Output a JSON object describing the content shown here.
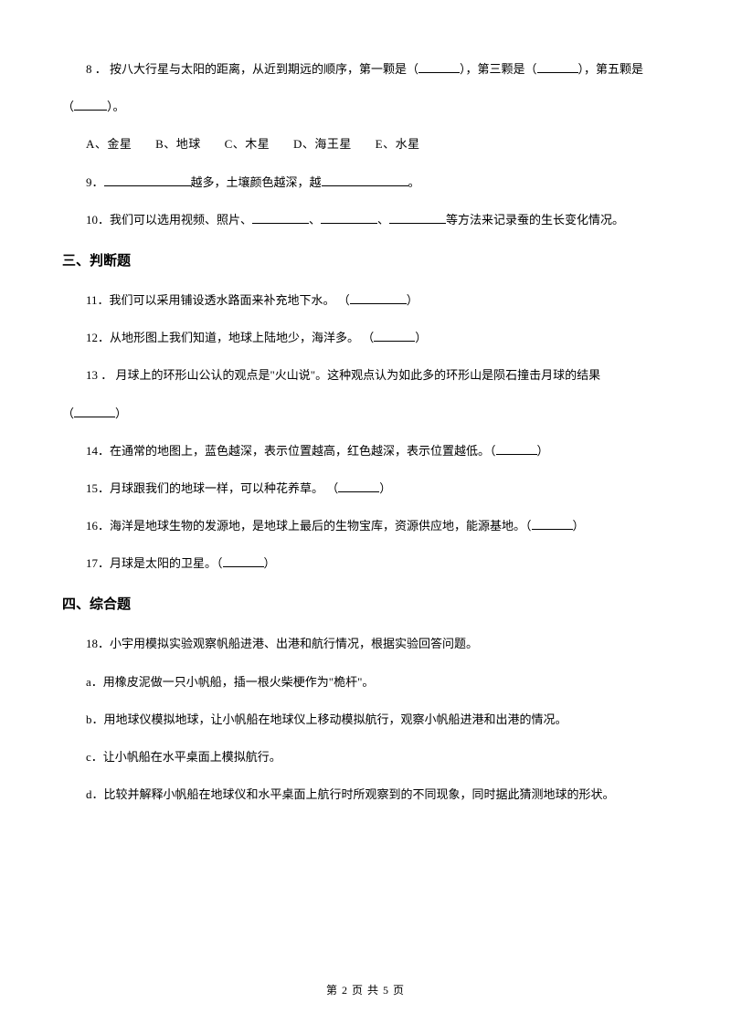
{
  "q8": {
    "text_part1": "8 ． 按八大行星与太阳的距离，从近到期远的顺序，第一颗是（",
    "text_part2": "），第三颗是（",
    "text_part3": "），第五颗是",
    "text_cont1": "（",
    "text_cont2": "）。",
    "options": {
      "a": "A、金星",
      "b": "B、地球",
      "c": "C、木星",
      "d": "D、海王星",
      "e": "E、水星"
    }
  },
  "q9": {
    "part1": "9．",
    "part2": "越多，土壤颜色越深，越",
    "part3": "。"
  },
  "q10": {
    "part1": "10．我们可以选用视频、照片、",
    "part2": "、",
    "part3": "、",
    "part4": "等方法来记录蚕的生长变化情况。"
  },
  "section3": "三、判断题",
  "q11": {
    "part1": "11．我们可以采用铺设透水路面来补充地下水。   （",
    "part2": "）"
  },
  "q12": {
    "part1": "12．从地形图上我们知道，地球上陆地少，海洋多。  （",
    "part2": "）"
  },
  "q13": {
    "part1": "13  ．  月球上的环形山公认的观点是\"火山说\"。这种观点认为如此多的环形山是陨石撞击月球的结果",
    "cont1": "（",
    "cont2": "）"
  },
  "q14": {
    "part1": "14．在通常的地图上，蓝色越深，表示位置越高，红色越深，表示位置越低。（",
    "part2": "）"
  },
  "q15": {
    "part1": "15．月球跟我们的地球一样，可以种花养草。    （",
    "part2": "）"
  },
  "q16": {
    "part1": "16．海洋是地球生物的发源地，是地球上最后的生物宝库，资源供应地，能源基地。（",
    "part2": "）"
  },
  "q17": {
    "part1": "17．月球是太阳的卫星。（",
    "part2": "）"
  },
  "section4": "四、综合题",
  "q18": {
    "main": "18．小宇用模拟实验观察帆船进港、出港和航行情况，根据实验回答问题。",
    "a": "a．用橡皮泥做一只小帆船，插一根火柴梗作为\"桅杆\"。",
    "b": "b．用地球仪模拟地球，让小帆船在地球仪上移动模拟航行，观察小帆船进港和出港的情况。",
    "c": "c．让小帆船在水平桌面上模拟航行。",
    "d": "d．比较并解释小帆船在地球仪和水平桌面上航行时所观察到的不同现象，同时据此猜测地球的形状。"
  },
  "footer": "第 2 页 共 5 页"
}
